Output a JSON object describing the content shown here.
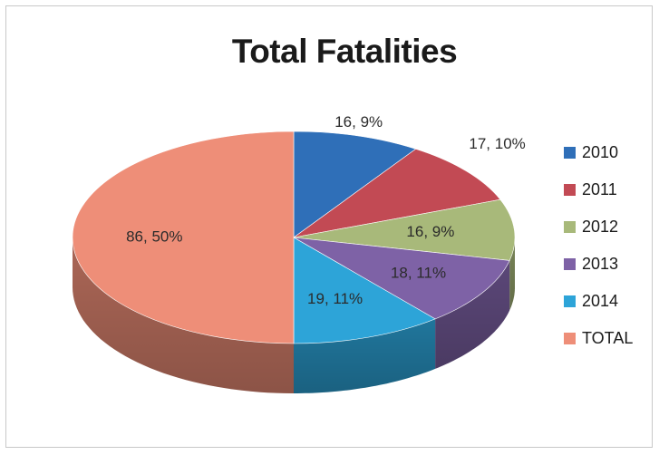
{
  "chart_data": {
    "type": "pie",
    "title": "Total Fatalities",
    "series": [
      {
        "name": "2010",
        "value": 16,
        "percent": "9%",
        "label": "16, 9%",
        "color": "#2f6fb8"
      },
      {
        "name": "2011",
        "value": 17,
        "percent": "10%",
        "label": "17, 10%",
        "color": "#c24a54"
      },
      {
        "name": "2012",
        "value": 16,
        "percent": "9%",
        "label": "16, 9%",
        "color": "#a8b97a"
      },
      {
        "name": "2013",
        "value": 18,
        "percent": "11%",
        "label": "18, 11%",
        "color": "#7e62a6"
      },
      {
        "name": "2014",
        "value": 19,
        "percent": "11%",
        "label": "19, 11%",
        "color": "#2da4d8"
      },
      {
        "name": "TOTAL",
        "value": 86,
        "percent": "50%",
        "label": "86, 50%",
        "color": "#ee8e78"
      }
    ],
    "legend_position": "right",
    "style": "3d"
  }
}
